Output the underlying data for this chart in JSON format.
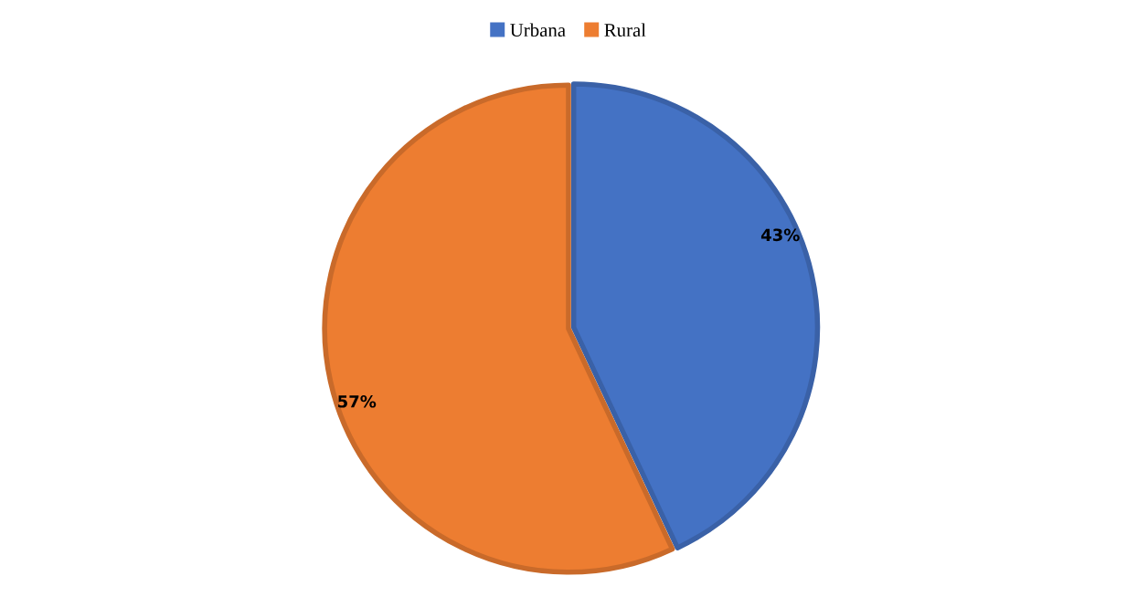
{
  "chart_data": {
    "type": "pie",
    "categories": [
      "Urbana",
      "Rural"
    ],
    "values": [
      43,
      57
    ],
    "colors": [
      "#4472c4",
      "#ed7d31"
    ],
    "value_labels": [
      "43%",
      "57%"
    ],
    "legend": "top"
  }
}
